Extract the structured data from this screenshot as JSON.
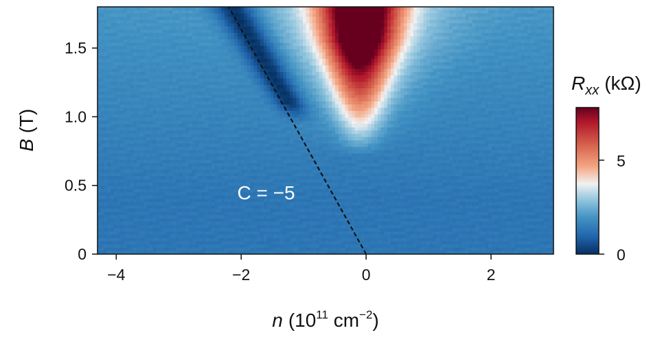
{
  "chart_data": {
    "type": "heatmap",
    "xlabel": {
      "var": "n",
      "unit_pre": "(10",
      "unit_exp": "11",
      "unit_mid": " cm",
      "unit_exp2": "−2",
      "unit_post": ")"
    },
    "ylabel": {
      "var": "B",
      "unit": "(T)"
    },
    "xlim": [
      -4.3,
      3.0
    ],
    "ylim": [
      0,
      1.8
    ],
    "xticks": [
      -4,
      -2,
      0,
      2
    ],
    "xtick_labels": [
      "−4",
      "−2",
      "0",
      "2"
    ],
    "yticks": [
      0,
      0.5,
      1.0,
      1.5
    ],
    "ytick_labels": [
      "0",
      "0.5",
      "1.0",
      "1.5"
    ],
    "colorbar": {
      "label_var": "R",
      "label_sub": "xx",
      "label_unit": "(kΩ)",
      "range": [
        0,
        7.8
      ],
      "ticks": [
        0,
        5
      ],
      "tick_labels": [
        "0",
        "5"
      ],
      "colormap": "RdBu_r"
    },
    "field_features": {
      "background_value": 1.3,
      "resistive_peak": {
        "n_center": -0.1,
        "B_min": 0.95,
        "peak_value": 7.8
      },
      "low_resistance_dip": {
        "from": {
          "n": -1.15,
          "B": 1.0
        },
        "to": {
          "n": -2.2,
          "B": 1.8
        },
        "min_value": 0.1
      }
    },
    "guide_line": {
      "style": "dashed",
      "color": "#111111",
      "points": [
        [
          0,
          0
        ],
        [
          -2.2,
          1.8
        ]
      ]
    },
    "annotation": {
      "text": "C = −5",
      "n": -1.6,
      "B": 0.4
    }
  }
}
